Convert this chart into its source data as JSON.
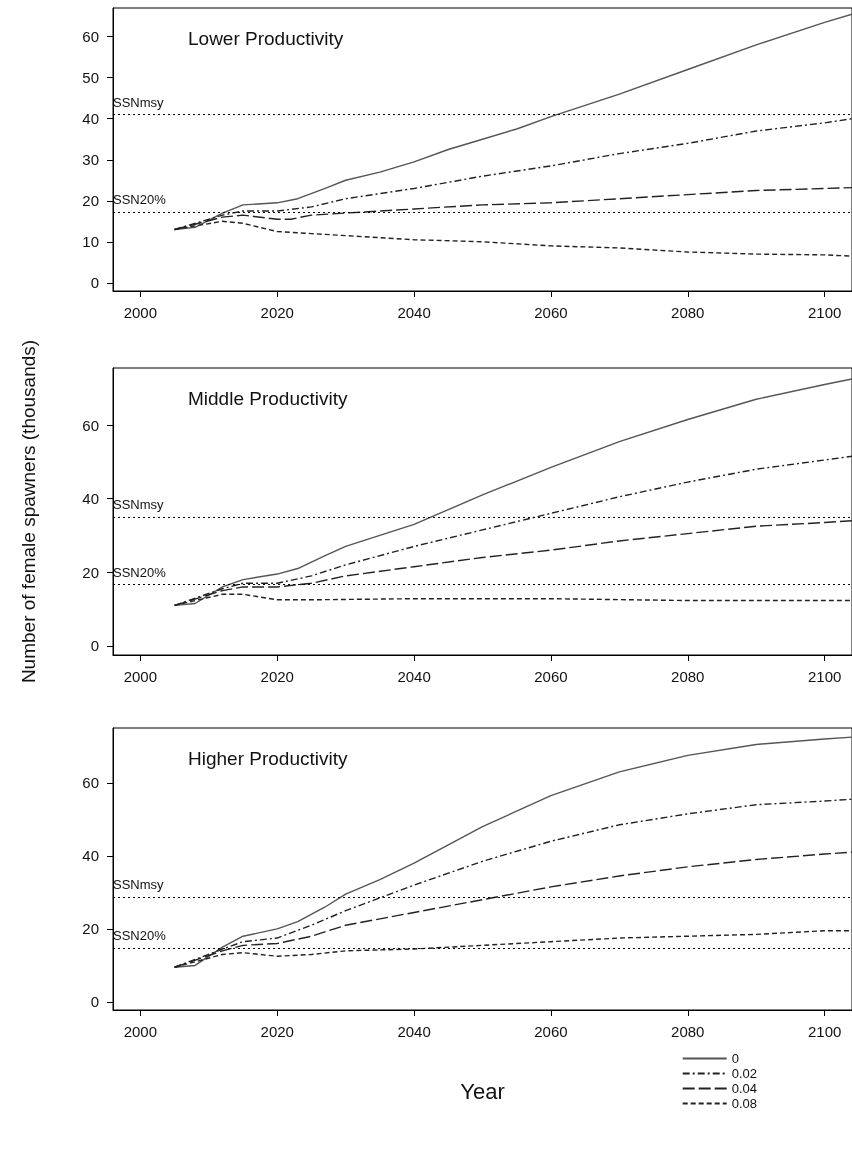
{
  "chart_data": [
    {
      "type": "line",
      "title": "Lower Productivity",
      "xlim": [
        1996,
        2104
      ],
      "xticks": [
        2000,
        2020,
        2040,
        2060,
        2080,
        2100
      ],
      "ylim": [
        -2,
        67
      ],
      "yticks": [
        0,
        10,
        20,
        30,
        40,
        50,
        60
      ],
      "grid": false,
      "marker": "none",
      "legend": false,
      "ref_lines": [
        {
          "axis": "y",
          "value": 41,
          "label": "SSNmsy",
          "line_style": "dotted",
          "color": "#000000"
        },
        {
          "axis": "y",
          "value": 17.2,
          "label": "SSN20%",
          "line_style": "dotted",
          "color": "#000000"
        }
      ],
      "series": [
        {
          "color": "#555555",
          "line_style": "solid",
          "x": [
            2005,
            2008,
            2012,
            2015,
            2020,
            2023,
            2027,
            2030,
            2035,
            2040,
            2045,
            2050,
            2055,
            2060,
            2070,
            2080,
            2090,
            2100,
            2104
          ],
          "values": [
            13,
            13.5,
            17,
            19,
            19.5,
            20.5,
            23,
            25,
            27,
            29.5,
            32.5,
            35,
            37.5,
            40.5,
            46,
            52,
            58,
            63.5,
            65.5
          ]
        },
        {
          "color": "#222222",
          "line_style": "dashdot",
          "x": [
            2005,
            2012,
            2015,
            2020,
            2025,
            2030,
            2040,
            2050,
            2060,
            2070,
            2080,
            2090,
            2100,
            2104
          ],
          "values": [
            13,
            16.5,
            17.5,
            17.5,
            18.5,
            20.5,
            23,
            26,
            28.5,
            31.5,
            34,
            37,
            39,
            40
          ]
        },
        {
          "color": "#222222",
          "line_style": "longdash",
          "x": [
            2005,
            2012,
            2015,
            2020,
            2022,
            2025,
            2030,
            2040,
            2050,
            2060,
            2070,
            2080,
            2090,
            2100,
            2104
          ],
          "values": [
            13,
            16,
            16.5,
            15.5,
            15.5,
            16.5,
            17,
            18,
            19,
            19.5,
            20.5,
            21.5,
            22.5,
            23,
            23.2
          ]
        },
        {
          "color": "#222222",
          "line_style": "dashed",
          "x": [
            2005,
            2012,
            2015,
            2020,
            2025,
            2030,
            2040,
            2050,
            2060,
            2070,
            2080,
            2090,
            2100,
            2104
          ],
          "values": [
            13,
            15,
            14.5,
            12.5,
            12,
            11.5,
            10.5,
            10,
            9,
            8.5,
            7.5,
            7,
            6.8,
            6.5
          ]
        }
      ]
    },
    {
      "type": "line",
      "title": "Middle Productivity",
      "ylabel": "Number of female spawners (thousands)",
      "xlim": [
        1996,
        2104
      ],
      "xticks": [
        2000,
        2020,
        2040,
        2060,
        2080,
        2100
      ],
      "ylim": [
        -2.5,
        75.5
      ],
      "yticks": [
        0,
        20,
        40,
        60
      ],
      "grid": false,
      "marker": "none",
      "legend": false,
      "ref_lines": [
        {
          "axis": "y",
          "value": 35,
          "label": "SSNmsy",
          "line_style": "dotted",
          "color": "#000000"
        },
        {
          "axis": "y",
          "value": 16.6,
          "label": "SSN20%",
          "line_style": "dotted",
          "color": "#000000"
        }
      ],
      "series": [
        {
          "color": "#555555",
          "line_style": "solid",
          "x": [
            2005,
            2008,
            2012,
            2015,
            2020,
            2023,
            2027,
            2030,
            2035,
            2040,
            2045,
            2050,
            2060,
            2070,
            2080,
            2090,
            2100,
            2104
          ],
          "values": [
            11,
            11.5,
            16,
            18,
            19.5,
            21,
            24.5,
            27,
            30,
            33,
            37,
            41,
            48.5,
            55.5,
            61.5,
            67,
            71,
            72.5
          ]
        },
        {
          "color": "#222222",
          "line_style": "dashdot",
          "x": [
            2005,
            2012,
            2015,
            2020,
            2025,
            2030,
            2040,
            2050,
            2060,
            2070,
            2080,
            2090,
            2100,
            2104
          ],
          "values": [
            11,
            15.5,
            17,
            17,
            19,
            22,
            27,
            31.5,
            36,
            40.5,
            44.5,
            48,
            50.5,
            51.5
          ]
        },
        {
          "color": "#222222",
          "line_style": "longdash",
          "x": [
            2005,
            2012,
            2015,
            2020,
            2025,
            2030,
            2040,
            2050,
            2060,
            2070,
            2080,
            2090,
            2100,
            2104
          ],
          "values": [
            11,
            15,
            16,
            16,
            17,
            19,
            21.5,
            24,
            26,
            28.5,
            30.5,
            32.5,
            33.5,
            34
          ]
        },
        {
          "color": "#222222",
          "line_style": "dashed",
          "x": [
            2005,
            2012,
            2015,
            2020,
            2025,
            2040,
            2060,
            2080,
            2104
          ],
          "values": [
            11,
            14,
            14,
            12.5,
            12.5,
            12.8,
            12.8,
            12.3,
            12.3
          ]
        }
      ]
    },
    {
      "type": "line",
      "title": "Higher Productivity",
      "xlabel": "Year",
      "xlim": [
        1996,
        2104
      ],
      "xticks": [
        2000,
        2020,
        2040,
        2060,
        2080,
        2100
      ],
      "ylim": [
        -2.2,
        75
      ],
      "yticks": [
        0,
        20,
        40,
        60
      ],
      "grid": false,
      "marker": "none",
      "legend": "bottom right",
      "ref_lines": [
        {
          "axis": "y",
          "value": 28.8,
          "label": "SSNmsy",
          "line_style": "dotted",
          "color": "#000000"
        },
        {
          "axis": "y",
          "value": 14.8,
          "label": "SSN20%",
          "line_style": "dotted",
          "color": "#000000"
        }
      ],
      "series": [
        {
          "name": "0",
          "color": "#555555",
          "line_style": "solid",
          "x": [
            2005,
            2008,
            2012,
            2015,
            2020,
            2023,
            2027,
            2030,
            2035,
            2040,
            2045,
            2050,
            2060,
            2070,
            2080,
            2090,
            2100,
            2104
          ],
          "values": [
            9.5,
            10,
            15,
            18,
            20,
            22,
            26,
            29.5,
            33.5,
            38,
            43,
            48,
            56.5,
            63,
            67.5,
            70.5,
            72,
            72.5
          ]
        },
        {
          "name": "0.02",
          "color": "#222222",
          "line_style": "dashdot",
          "x": [
            2005,
            2012,
            2015,
            2020,
            2025,
            2030,
            2035,
            2040,
            2050,
            2060,
            2070,
            2080,
            2090,
            2100,
            2104
          ],
          "values": [
            9.5,
            14.5,
            16.5,
            17.5,
            21,
            25,
            28.5,
            32,
            38.5,
            44,
            48.5,
            51.5,
            54,
            55,
            55.5
          ]
        },
        {
          "name": "0.04",
          "color": "#222222",
          "line_style": "longdash",
          "x": [
            2005,
            2012,
            2015,
            2020,
            2025,
            2030,
            2040,
            2050,
            2060,
            2070,
            2080,
            2090,
            2100,
            2104
          ],
          "values": [
            9.5,
            14,
            15.5,
            16,
            18,
            21,
            24.5,
            28,
            31.5,
            34.5,
            37,
            39,
            40.5,
            41
          ]
        },
        {
          "name": "0.08",
          "color": "#222222",
          "line_style": "dashed",
          "x": [
            2005,
            2012,
            2015,
            2020,
            2025,
            2030,
            2040,
            2050,
            2060,
            2070,
            2080,
            2090,
            2100,
            2104
          ],
          "values": [
            9.5,
            13,
            13.5,
            12.5,
            13,
            14,
            14.5,
            15.5,
            16.5,
            17.5,
            18,
            18.5,
            19.5,
            19.5
          ]
        }
      ]
    }
  ]
}
